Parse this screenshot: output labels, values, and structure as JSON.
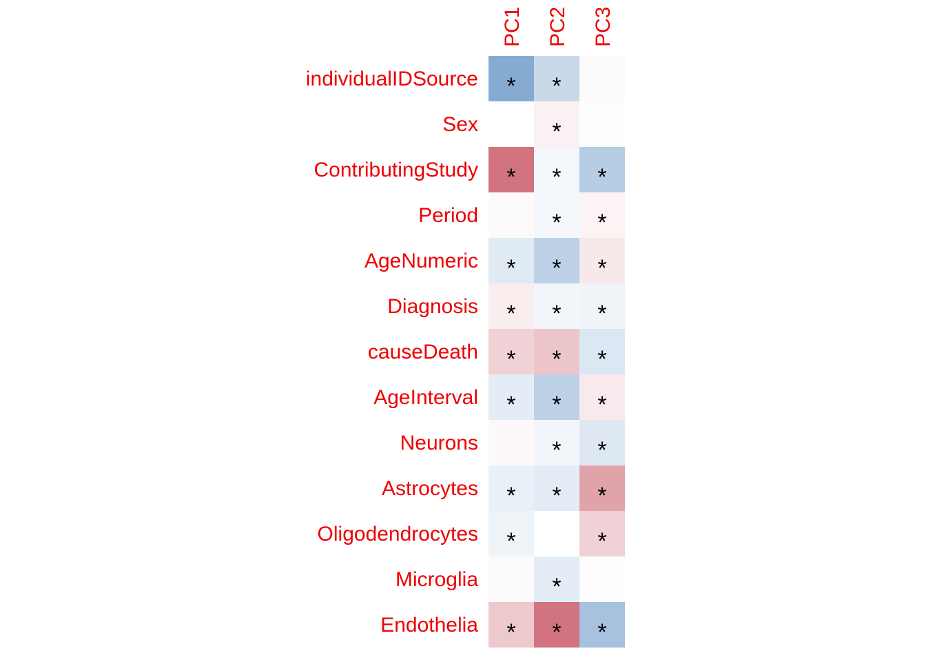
{
  "chart_data": {
    "type": "heatmap",
    "title": "",
    "xlabel": "",
    "ylabel": "",
    "columns": [
      "PC1",
      "PC2",
      "PC3"
    ],
    "rows": [
      "individualIDSource",
      "Sex",
      "ContributingStudy",
      "Period",
      "AgeNumeric",
      "Diagnosis",
      "causeDeath",
      "AgeInterval",
      "Neurons",
      "Astrocytes",
      "Oligodendrocytes",
      "Microglia",
      "Endothelia"
    ],
    "values": [
      [
        -0.55,
        -0.25,
        0.02
      ],
      [
        0.0,
        0.06,
        -0.01
      ],
      [
        0.6,
        -0.05,
        -0.33
      ],
      [
        0.02,
        -0.05,
        0.05
      ],
      [
        -0.14,
        -0.3,
        0.1
      ],
      [
        0.08,
        -0.06,
        -0.07
      ],
      [
        0.2,
        0.25,
        -0.16
      ],
      [
        -0.12,
        -0.3,
        0.09
      ],
      [
        0.03,
        -0.06,
        -0.15
      ],
      [
        -0.1,
        -0.12,
        0.4
      ],
      [
        -0.07,
        0.0,
        0.2
      ],
      [
        0.02,
        -0.12,
        0.01
      ],
      [
        0.24,
        0.6,
        -0.4
      ]
    ],
    "significant": [
      [
        true,
        true,
        false
      ],
      [
        false,
        true,
        false
      ],
      [
        true,
        true,
        true
      ],
      [
        false,
        true,
        true
      ],
      [
        true,
        true,
        true
      ],
      [
        true,
        true,
        true
      ],
      [
        true,
        true,
        true
      ],
      [
        true,
        true,
        true
      ],
      [
        false,
        true,
        true
      ],
      [
        true,
        true,
        true
      ],
      [
        true,
        false,
        true
      ],
      [
        false,
        true,
        false
      ],
      [
        true,
        true,
        true
      ]
    ],
    "significance_symbol": "*",
    "color_scale": {
      "negative": "#2166ac",
      "mid": "#ffffff",
      "positive": "#b2182b",
      "min": -1,
      "max": 1
    },
    "label_color": "#ee0000",
    "legend": "none",
    "grid": false
  }
}
